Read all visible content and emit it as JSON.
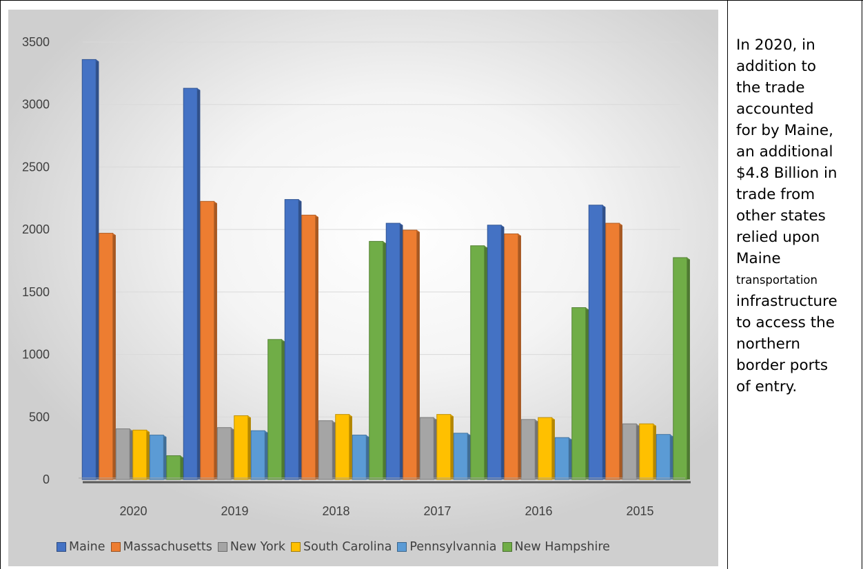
{
  "chart_data": {
    "type": "bar",
    "categories": [
      "2020",
      "2019",
      "2018",
      "2017",
      "2016",
      "2015"
    ],
    "ylim": [
      0,
      3500
    ],
    "yticks": [
      0,
      500,
      1000,
      1500,
      2000,
      2500,
      3000,
      3500
    ],
    "grid": true,
    "legend_position": "bottom",
    "series": [
      {
        "name": "Maine",
        "color": "#4472C4",
        "values": [
          3360,
          3130,
          2240,
          2050,
          2035,
          2195
        ]
      },
      {
        "name": "Massachusetts",
        "color": "#ED7D31",
        "values": [
          1970,
          2225,
          2115,
          1995,
          1965,
          2050
        ]
      },
      {
        "name": "New York",
        "color": "#A5A5A5",
        "values": [
          405,
          415,
          470,
          495,
          480,
          445
        ]
      },
      {
        "name": "South Carolina",
        "color": "#FFC000",
        "values": [
          395,
          510,
          520,
          520,
          495,
          445
        ]
      },
      {
        "name": "Pennsylvannia",
        "color": "#5B9BD5",
        "values": [
          355,
          390,
          355,
          370,
          335,
          360
        ]
      },
      {
        "name": "New Hampshire",
        "color": "#70AD47",
        "values": [
          190,
          1120,
          1905,
          1870,
          1375,
          1775
        ]
      }
    ]
  },
  "note": {
    "lines": [
      "In 2020, in",
      "addition to",
      "the trade",
      "accounted",
      "for by Maine,",
      "an additional",
      "$4.8 Billion in",
      "trade from",
      "other states",
      "relied upon",
      "Maine"
    ],
    "small_line": "transportation",
    "lines_after": [
      "infrastructure",
      "to access the",
      "northern",
      "border ports",
      "of entry."
    ]
  }
}
